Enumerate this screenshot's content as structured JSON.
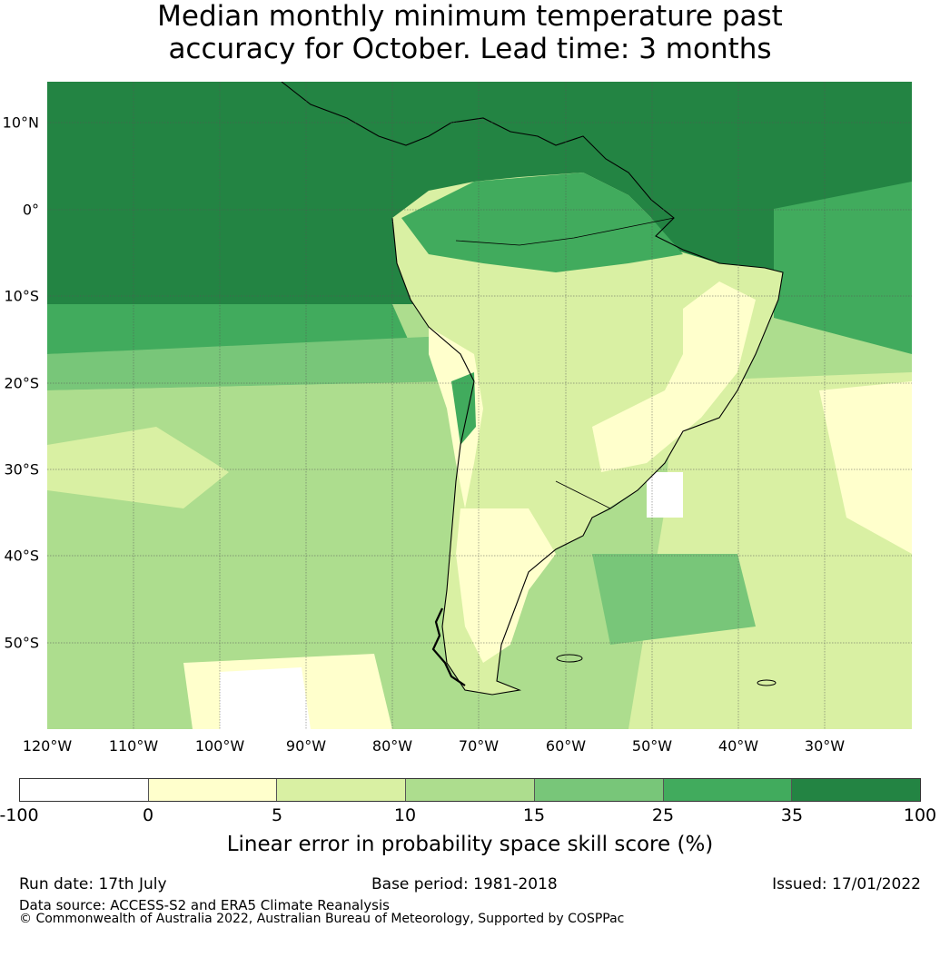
{
  "title_line1": "Median monthly minimum temperature past",
  "title_line2": "accuracy for October. Lead time: 3 months",
  "map": {
    "colors": {
      "land_outline": "#000000",
      "gridline": "#555555",
      "ocean_north": "#238443",
      "ocean_mid": "#41ab5d",
      "ocean_south": "#addd8e",
      "land_dry": "#ffffcc",
      "land_mid": "#d9f0a3"
    },
    "lat_labels": [
      "10°N",
      "0°",
      "10°S",
      "20°S",
      "30°S",
      "40°S",
      "50°S"
    ],
    "lon_labels": [
      "120°W",
      "110°W",
      "100°W",
      "90°W",
      "80°W",
      "70°W",
      "60°W",
      "50°W",
      "40°W",
      "30°W"
    ]
  },
  "colorbar": {
    "ticks": [
      "-100",
      "0",
      "5",
      "10",
      "15",
      "25",
      "35",
      "100"
    ],
    "colors": [
      "#ffffff",
      "#ffffcc",
      "#d9f0a3",
      "#addd8e",
      "#78c679",
      "#41ab5d",
      "#238443"
    ],
    "label": "Linear error in probability space skill score (%)"
  },
  "footer": {
    "run_date": "Run date: 17th July",
    "base_period": "Base period: 1981-2018",
    "issued": "Issued: 17/01/2022",
    "data_source": "Data source: ACCESS-S2 and ERA5 Climate Reanalysis",
    "copyright": "© Commonwealth of Australia 2022, Australian Bureau of Meteorology, Supported by COSPPac"
  }
}
